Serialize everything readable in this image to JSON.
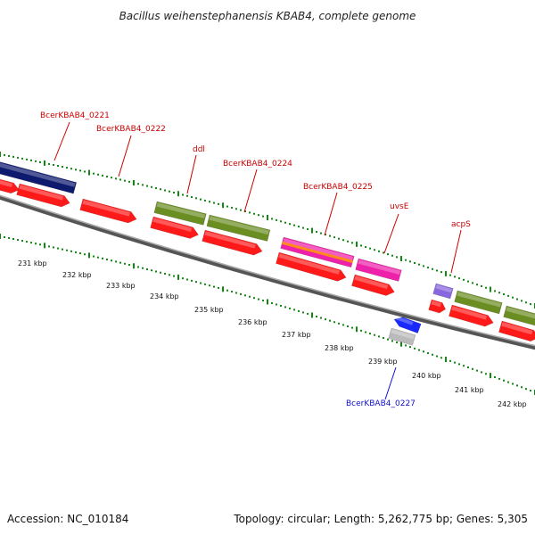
{
  "title": "Bacillus weihenstephanensis KBAB4, complete genome",
  "accession": "Accession: NC_010184",
  "summary": "Topology: circular; Length: 5,262,775 bp; Genes: 5,305",
  "colors": {
    "cds": "#ff1a1a",
    "gene_green": "#6b8e23",
    "gene_navy": "#0d1a6e",
    "gene_pink": "#ee22aa",
    "gene_orange": "#ff8c1a",
    "gene_purple": "#8866dd",
    "gene_blue": "#1a2aff",
    "gene_gray": "#bbbbbb",
    "backbone": "#777777",
    "tick": "#118811",
    "label_plus": "#cc0000",
    "label_minus": "#1010cc"
  },
  "scale_ticks": [
    "231 kbp",
    "232 kbp",
    "233 kbp",
    "234 kbp",
    "235 kbp",
    "236 kbp",
    "237 kbp",
    "238 kbp",
    "239 kbp",
    "240 kbp",
    "241 kbp",
    "242 kbp"
  ],
  "gene_labels": [
    {
      "name": "BcerKBAB4_0221",
      "strand": "+"
    },
    {
      "name": "BcerKBAB4_0222",
      "strand": "+"
    },
    {
      "name": "ddl",
      "strand": "+"
    },
    {
      "name": "BcerKBAB4_0224",
      "strand": "+"
    },
    {
      "name": "BcerKBAB4_0225",
      "strand": "+"
    },
    {
      "name": "uvsE",
      "strand": "+"
    },
    {
      "name": "acpS",
      "strand": "+"
    },
    {
      "name": "BcerKBAB4_0227",
      "strand": "-"
    }
  ]
}
